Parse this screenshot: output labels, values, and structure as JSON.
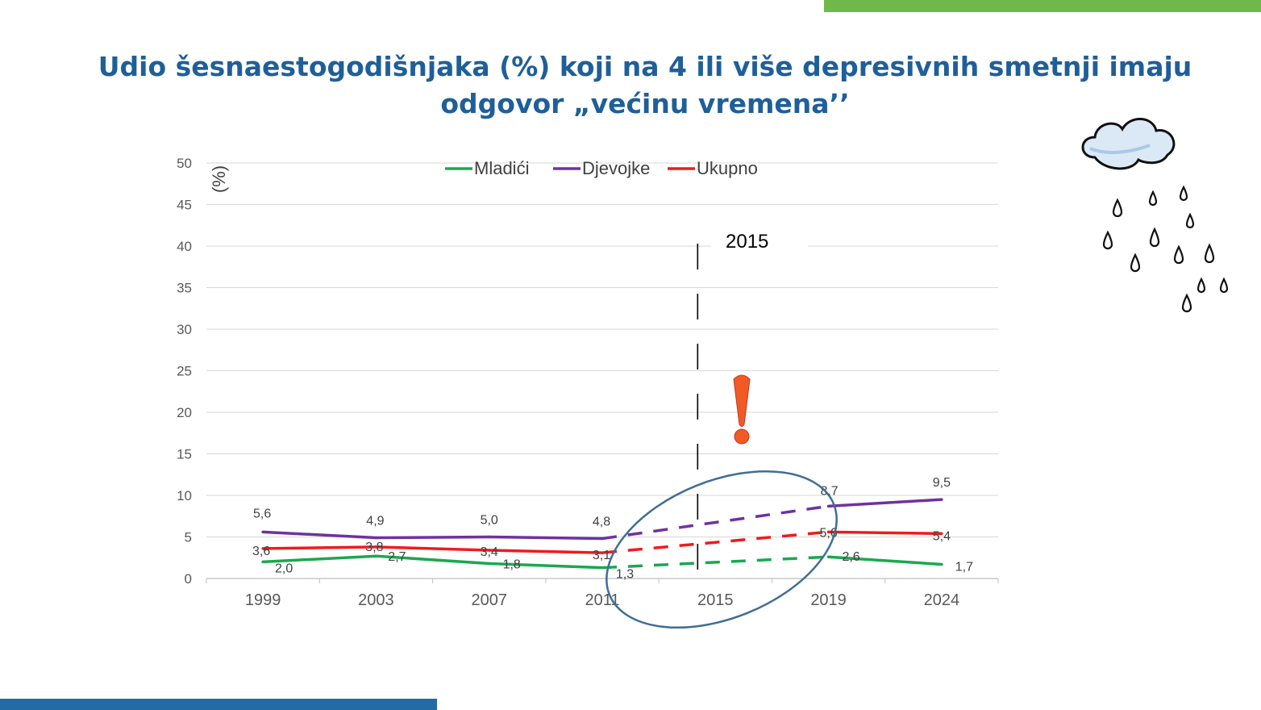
{
  "colors": {
    "accent_green": "#70b84a",
    "accent_blue": "#236ba5",
    "title": "#1f5f99",
    "mladici": "#1aa84f",
    "djevojke": "#7031a0",
    "ukupno": "#ee1c1c",
    "ellipse": "#3e6e96",
    "exclamation": "#f15a24"
  },
  "slide": {
    "title_line1": "Udio šesnaestogodišnjaka (%) koji na 4 ili više depresivnih smetnji imaju",
    "title_line2": "odgovor „većinu vremena’’"
  },
  "icons": [
    "rain-cloud-icon",
    "exclamation-icon"
  ],
  "chart_data": {
    "type": "line",
    "categories": [
      "1999",
      "2003",
      "2007",
      "2011",
      "2015",
      "2019",
      "2024"
    ],
    "ylabel": "(%)",
    "ylim": [
      0,
      50
    ],
    "yticks": [
      0,
      5,
      10,
      15,
      20,
      25,
      30,
      35,
      40,
      45,
      50
    ],
    "grid": true,
    "legend_position": "top",
    "annotation": "2015",
    "series": [
      {
        "name": "Mladići",
        "values": [
          2.0,
          2.7,
          1.8,
          1.3,
          null,
          2.6,
          1.7
        ],
        "labels": [
          "2,0",
          "2,7",
          "1,8",
          "1,3",
          "",
          "2,6",
          "1,7"
        ]
      },
      {
        "name": "Djevojke",
        "values": [
          5.6,
          4.9,
          5.0,
          4.8,
          null,
          8.7,
          9.5
        ],
        "labels": [
          "5,6",
          "4,9",
          "5,0",
          "4,8",
          "",
          "8,7",
          "9,5"
        ]
      },
      {
        "name": "Ukupno",
        "values": [
          3.6,
          3.8,
          3.4,
          3.1,
          null,
          5.6,
          5.4
        ],
        "labels": [
          "3,6",
          "3,8",
          "3,4",
          "3,1",
          "",
          "5,6",
          "5,4"
        ]
      }
    ]
  }
}
